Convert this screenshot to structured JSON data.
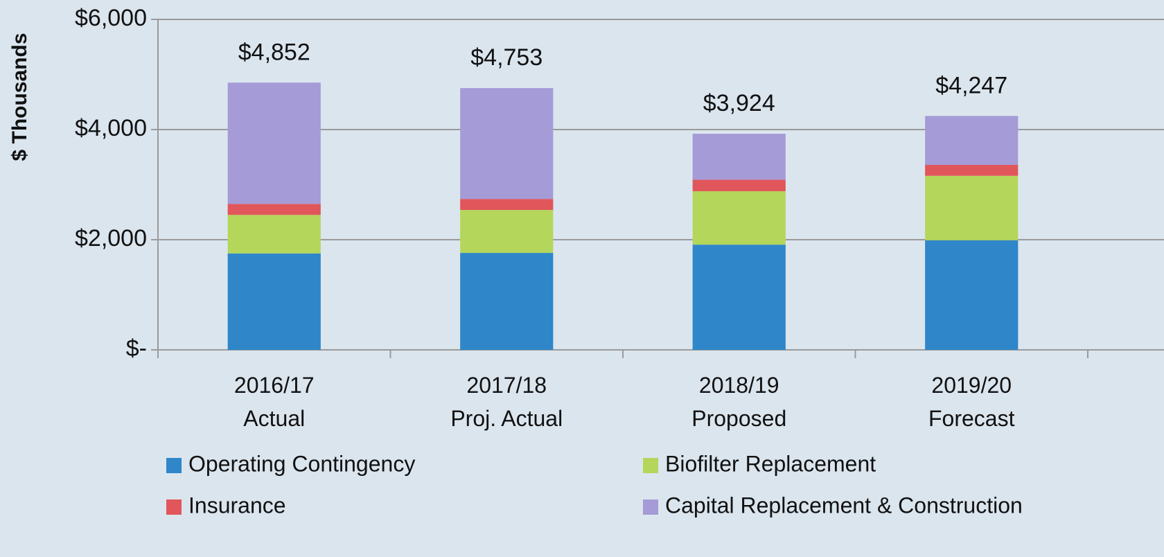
{
  "chart_data": {
    "type": "stacked-bar",
    "y_label": "$ Thousands",
    "categories": [
      "2016/17\nActual",
      "2017/18\nProj. Actual",
      "2018/19\nProposed",
      "2019/20\nForecast"
    ],
    "series": [
      {
        "name": "Operating Contingency",
        "color": "#2f86c9",
        "values": [
          1750,
          1760,
          1910,
          1990
        ]
      },
      {
        "name": "Biofilter Replacement",
        "color": "#b4d65b",
        "values": [
          700,
          780,
          970,
          1170
        ]
      },
      {
        "name": "Insurance",
        "color": "#e0565b",
        "values": [
          200,
          200,
          210,
          200
        ]
      },
      {
        "name": "Capital Replacement & Construction",
        "color": "#a49bd7",
        "values": [
          2202,
          2013,
          834,
          887
        ]
      }
    ],
    "totals": [
      4852,
      4753,
      3924,
      4247
    ],
    "total_labels": [
      "$4,852",
      "$4,753",
      "$3,924",
      "$4,247"
    ],
    "ylim": [
      0,
      6000
    ],
    "yticks": [
      {
        "value": 0,
        "label": "$-"
      },
      {
        "value": 2000,
        "label": "$2,000"
      },
      {
        "value": 4000,
        "label": "$4,000"
      },
      {
        "value": 6000,
        "label": "$6,000"
      }
    ],
    "grid": true
  }
}
